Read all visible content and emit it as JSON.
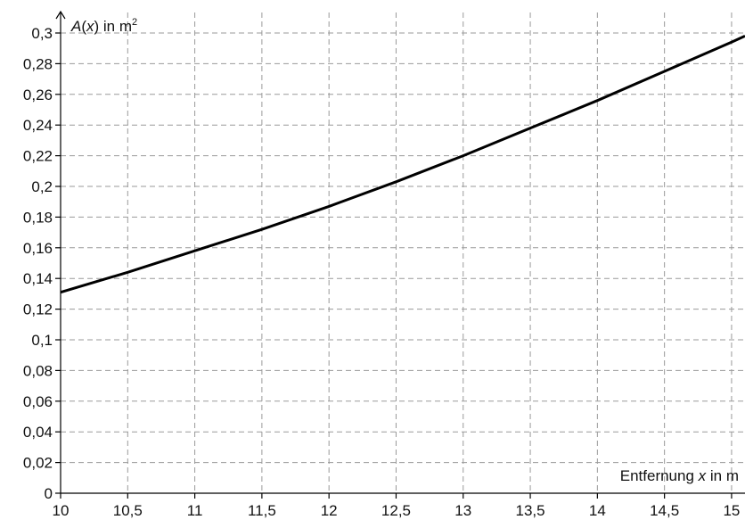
{
  "chart_data": {
    "type": "line",
    "ylabel": {
      "func_letter": "A",
      "open": "(",
      "var": "x",
      "close_unit": ") in m",
      "sup": "2"
    },
    "xlabel": {
      "before": "Entfernung ",
      "var": "x",
      "after": " in m"
    },
    "xlim": [
      10,
      15.1
    ],
    "ylim": [
      0,
      0.3
    ],
    "x_ticks": [
      10,
      10.5,
      11,
      11.5,
      12,
      12.5,
      13,
      13.5,
      14,
      14.5,
      15
    ],
    "x_tick_labels": [
      "10",
      "10,5",
      "11",
      "11,5",
      "12",
      "12,5",
      "13",
      "13,5",
      "14",
      "14,5",
      "15"
    ],
    "y_ticks": [
      0,
      0.02,
      0.04,
      0.06,
      0.08,
      0.1,
      0.12,
      0.14,
      0.16,
      0.18,
      0.2,
      0.22,
      0.24,
      0.26,
      0.28,
      0.3
    ],
    "y_tick_labels": [
      "0",
      "0,02",
      "0,04",
      "0,06",
      "0,08",
      "0,1",
      "0,12",
      "0,14",
      "0,16",
      "0,18",
      "0,2",
      "0,22",
      "0,24",
      "0,26",
      "0,28",
      "0,3"
    ],
    "grid": true,
    "series": [
      {
        "color": "#000000",
        "x": [
          10,
          10.5,
          11,
          11.5,
          12,
          12.5,
          13,
          13.5,
          14,
          14.5,
          15,
          15.1
        ],
        "y": [
          0.131,
          0.144,
          0.158,
          0.172,
          0.187,
          0.203,
          0.22,
          0.238,
          0.256,
          0.275,
          0.294,
          0.298
        ]
      }
    ]
  }
}
